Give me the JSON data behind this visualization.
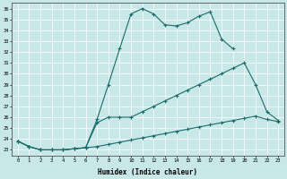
{
  "xlabel": "Humidex (Indice chaleur)",
  "xlim": [
    -0.5,
    23.5
  ],
  "ylim": [
    22.5,
    36.5
  ],
  "xticks": [
    0,
    1,
    2,
    3,
    4,
    5,
    6,
    7,
    8,
    9,
    10,
    11,
    12,
    13,
    14,
    15,
    16,
    17,
    18,
    19,
    20,
    21,
    22,
    23
  ],
  "yticks": [
    23,
    24,
    25,
    26,
    27,
    28,
    29,
    30,
    31,
    32,
    33,
    34,
    35,
    36
  ],
  "bg_color": "#c8e8e8",
  "line_color": "#1a6b6b",
  "grid_color": "#ffffff",
  "series": [
    {
      "x": [
        0,
        1,
        2,
        3,
        4,
        5,
        6,
        7,
        8,
        9,
        10,
        11,
        12,
        13,
        14,
        15,
        16,
        17,
        18,
        19,
        20,
        21,
        22,
        23
      ],
      "y": [
        23.8,
        23.3,
        23.0,
        23.0,
        23.0,
        23.1,
        23.2,
        25.8,
        29.0,
        32.3,
        35.5,
        36.0,
        35.5,
        34.5,
        34.4,
        34.7,
        35.3,
        35.7,
        33.2,
        32.3,
        null,
        null,
        null,
        null
      ]
    },
    {
      "x": [
        0,
        1,
        2,
        3,
        4,
        5,
        6,
        7,
        8,
        9,
        10,
        11,
        12,
        13,
        14,
        15,
        16,
        17,
        18,
        19,
        20,
        21,
        22,
        23
      ],
      "y": [
        23.8,
        23.3,
        23.0,
        23.0,
        23.0,
        23.1,
        23.2,
        25.5,
        26.0,
        26.0,
        26.0,
        26.5,
        27.0,
        27.5,
        28.0,
        28.5,
        29.0,
        29.5,
        30.0,
        30.5,
        31.0,
        29.0,
        26.5,
        25.7
      ]
    },
    {
      "x": [
        0,
        1,
        2,
        3,
        4,
        5,
        6,
        7,
        8,
        9,
        10,
        11,
        12,
        13,
        14,
        15,
        16,
        17,
        18,
        19,
        20,
        21,
        22,
        23
      ],
      "y": [
        23.8,
        23.3,
        23.0,
        23.0,
        23.0,
        23.1,
        23.2,
        23.3,
        23.5,
        23.7,
        23.9,
        24.1,
        24.3,
        24.5,
        24.7,
        24.9,
        25.1,
        25.3,
        25.5,
        25.7,
        25.9,
        26.1,
        25.8,
        25.6
      ]
    }
  ]
}
